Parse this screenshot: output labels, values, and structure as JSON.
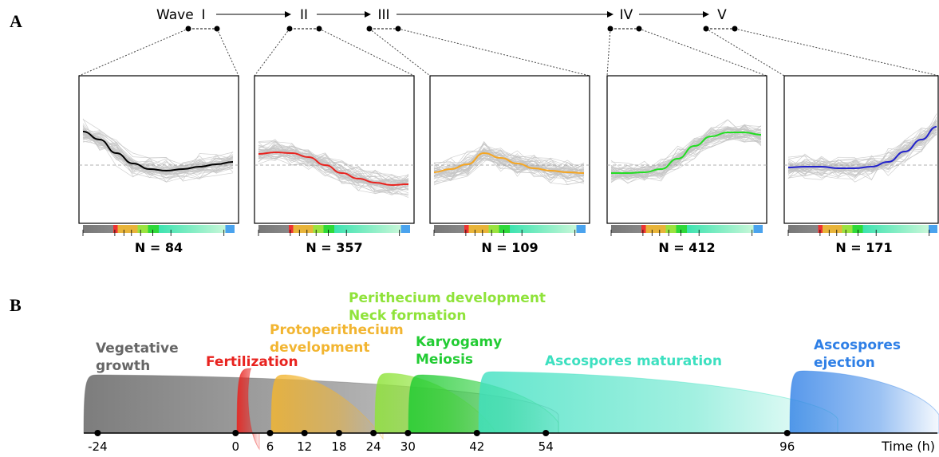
{
  "panel_a": {
    "label": "A",
    "wave_label": "Wave",
    "waves": [
      "I",
      "II",
      "III",
      "IV",
      "V"
    ],
    "clusters": [
      {
        "n_label": "N = 84",
        "color": "#000000"
      },
      {
        "n_label": "N = 357",
        "color": "#e8231f"
      },
      {
        "n_label": "N = 109",
        "color": "#f5a623"
      },
      {
        "n_label": "N = 412",
        "color": "#22dd22"
      },
      {
        "n_label": "N = 171",
        "color": "#2222cc"
      }
    ]
  },
  "panel_b": {
    "label": "B",
    "stages": [
      {
        "lines": [
          "Vegetative",
          "growth"
        ],
        "color": "#666666"
      },
      {
        "lines": [
          "Fertilization"
        ],
        "color": "#e8231f"
      },
      {
        "lines": [
          "Protoperithecium",
          "development"
        ],
        "color": "#f2b531"
      },
      {
        "lines": [
          "Perithecium development",
          "Neck formation"
        ],
        "color": "#8fe33a"
      },
      {
        "lines": [
          "Karyogamy",
          "Meiosis"
        ],
        "color": "#22cc33"
      },
      {
        "lines": [
          "Ascospores maturation"
        ],
        "color": "#3de0c0"
      },
      {
        "lines": [
          "Ascospores",
          "ejection"
        ],
        "color": "#2e7fe6"
      }
    ],
    "timeline": {
      "xlabel": "Time (h)",
      "xlim": [
        -26,
        122
      ],
      "xticks": [
        -24,
        0,
        6,
        12,
        18,
        24,
        30,
        42,
        54,
        96
      ]
    }
  }
}
